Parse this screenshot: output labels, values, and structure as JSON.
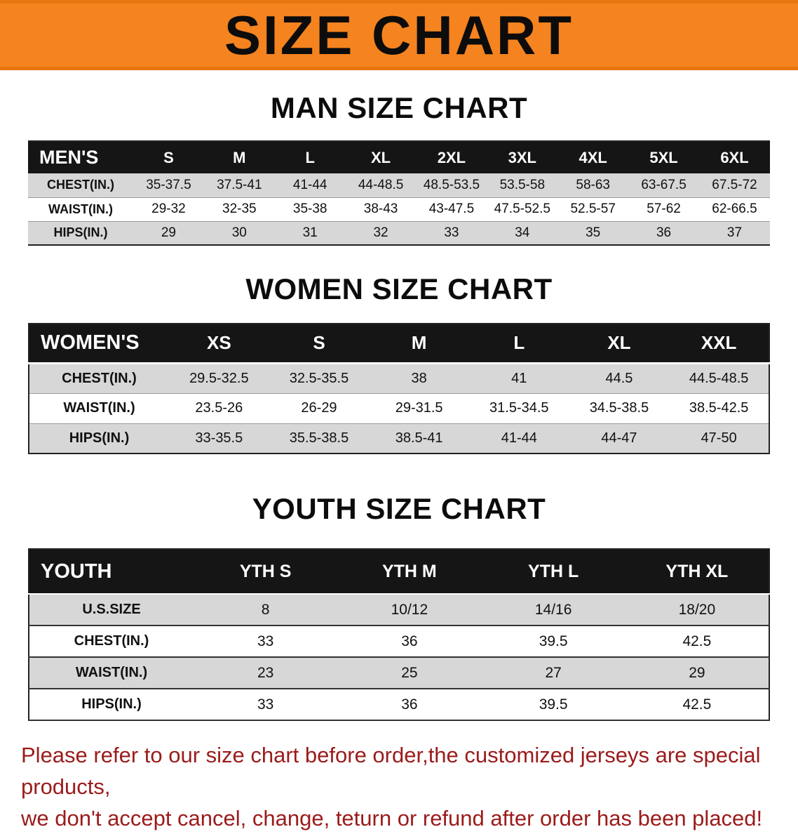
{
  "banner": {
    "title": "SIZE CHART"
  },
  "colors": {
    "banner_bg": "#f5831f",
    "header_bg": "#151515",
    "row_alt": "#d7d7d7",
    "footer_text": "#9b1b1b"
  },
  "men": {
    "section_title": "MAN SIZE CHART",
    "label": "MEN'S",
    "sizes": [
      "S",
      "M",
      "L",
      "XL",
      "2XL",
      "3XL",
      "4XL",
      "5XL",
      "6XL"
    ],
    "rows": [
      {
        "label": "CHEST(IN.)",
        "values": [
          "35-37.5",
          "37.5-41",
          "41-44",
          "44-48.5",
          "48.5-53.5",
          "53.5-58",
          "58-63",
          "63-67.5",
          "67.5-72"
        ]
      },
      {
        "label": "WAIST(IN.)",
        "values": [
          "29-32",
          "32-35",
          "35-38",
          "38-43",
          "43-47.5",
          "47.5-52.5",
          "52.5-57",
          "57-62",
          "62-66.5"
        ]
      },
      {
        "label": "HIPS(IN.)",
        "values": [
          "29",
          "30",
          "31",
          "32",
          "33",
          "34",
          "35",
          "36",
          "37"
        ]
      }
    ]
  },
  "women": {
    "section_title": "WOMEN SIZE CHART",
    "label": "WOMEN'S",
    "sizes": [
      "XS",
      "S",
      "M",
      "L",
      "XL",
      "XXL"
    ],
    "rows": [
      {
        "label": "CHEST(IN.)",
        "values": [
          "29.5-32.5",
          "32.5-35.5",
          "38",
          "41",
          "44.5",
          "44.5-48.5"
        ]
      },
      {
        "label": "WAIST(IN.)",
        "values": [
          "23.5-26",
          "26-29",
          "29-31.5",
          "31.5-34.5",
          "34.5-38.5",
          "38.5-42.5"
        ]
      },
      {
        "label": "HIPS(IN.)",
        "values": [
          "33-35.5",
          "35.5-38.5",
          "38.5-41",
          "41-44",
          "44-47",
          "47-50"
        ]
      }
    ]
  },
  "youth": {
    "section_title": "YOUTH SIZE CHART",
    "label": "YOUTH",
    "sizes": [
      "YTH S",
      "YTH M",
      "YTH L",
      "YTH XL"
    ],
    "rows": [
      {
        "label": "U.S.SIZE",
        "values": [
          "8",
          "10/12",
          "14/16",
          "18/20"
        ]
      },
      {
        "label": "CHEST(IN.)",
        "values": [
          "33",
          "36",
          "39.5",
          "42.5"
        ]
      },
      {
        "label": "WAIST(IN.)",
        "values": [
          "23",
          "25",
          "27",
          "29"
        ]
      },
      {
        "label": "HIPS(IN.)",
        "values": [
          "33",
          "36",
          "39.5",
          "42.5"
        ]
      }
    ]
  },
  "footer": {
    "line1": "Please refer to our size chart before order,the customized jerseys are special products,",
    "line2": "we don't accept cancel, change, teturn or refund after order has been placed!"
  }
}
